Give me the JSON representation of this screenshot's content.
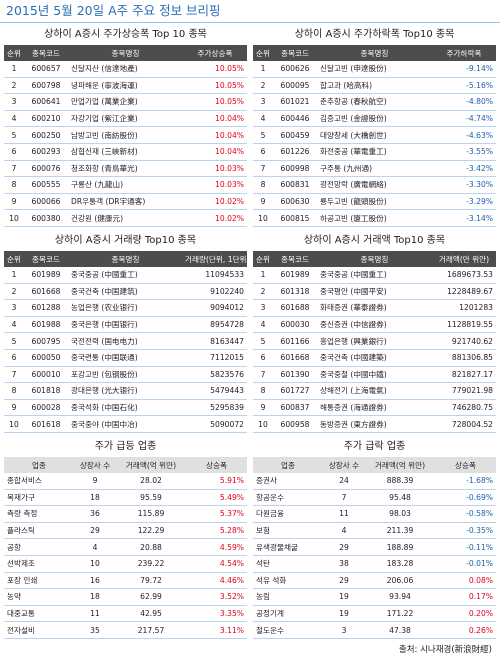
{
  "title": "2015년 5월 20일 A주 주요 정보 브리핑",
  "tables": [
    {
      "title": "상하이 A증시 주가상승폭 Top 10 종목",
      "headers": [
        "순위",
        "종목코드",
        "종목명칭",
        "주가상승폭"
      ],
      "value_colors": {
        "positive": "#e3001b",
        "negative": "#1f5fb0"
      },
      "rows": [
        [
          "1",
          "600657",
          "신달지산 (信達地產)",
          "10.05%"
        ],
        [
          "2",
          "600798",
          "녕파해운 (寧波海運)",
          "10.05%"
        ],
        [
          "3",
          "600641",
          "만업기업 (萬業企業)",
          "10.05%"
        ],
        [
          "4",
          "600210",
          "자강기업 (紫江企業)",
          "10.04%"
        ],
        [
          "5",
          "600250",
          "남방고빈 (南紡股份)",
          "10.04%"
        ],
        [
          "6",
          "600293",
          "삼협신재 (三峽新材)",
          "10.04%"
        ],
        [
          "7",
          "600076",
          "청조화항 (青鳥華光)",
          "10.03%"
        ],
        [
          "8",
          "600555",
          "구룡산 (九龍山)",
          "10.03%"
        ],
        [
          "9",
          "600066",
          "DR우통객 (DR宇通客)",
          "10.02%"
        ],
        [
          "10",
          "600380",
          "건강원 (健康元)",
          "10.02%"
        ]
      ]
    },
    {
      "title": "상하이 A증시 주가하락폭 Top10 종목",
      "headers": [
        "순위",
        "종목코드",
        "종목명칭",
        "주가하락폭"
      ],
      "value_colors": {
        "positive": "#e3001b",
        "negative": "#1f5fb0"
      },
      "rows": [
        [
          "1",
          "600626",
          "신달고빈 (申達股份)",
          "-9.14%"
        ],
        [
          "2",
          "600095",
          "합고과 (哈高科)",
          "-5.16%"
        ],
        [
          "3",
          "601021",
          "춘추항공 (春秋航空)",
          "-4.80%"
        ],
        [
          "4",
          "600446",
          "김증고빈 (金證股份)",
          "-4.74%"
        ],
        [
          "5",
          "600459",
          "대양창세 (大橋創世)",
          "-4.63%"
        ],
        [
          "6",
          "601226",
          "화전중공 (華電重工)",
          "-3.55%"
        ],
        [
          "7",
          "600998",
          "구주통 (九州通)",
          "-3.42%"
        ],
        [
          "8",
          "600831",
          "광전망락 (廣電網絡)",
          "-3.30%"
        ],
        [
          "9",
          "600630",
          "룡두고빈 (龍頭股份)",
          "-3.29%"
        ],
        [
          "10",
          "600815",
          "하공고빈 (廈工股份)",
          "-3.14%"
        ]
      ]
    },
    {
      "title": "상하이 A증시 거래량 Top10 종목",
      "headers": [
        "순위",
        "종목코드",
        "종목명칭",
        "거래량(단위, 1단위=100주)"
      ],
      "rows": [
        [
          "1",
          "601989",
          "중국중공 (中國重工)",
          "11094533"
        ],
        [
          "2",
          "601668",
          "중국건축 (中国建筑)",
          "9102240"
        ],
        [
          "3",
          "601288",
          "농업은행 (农业银行)",
          "9094012"
        ],
        [
          "4",
          "601988",
          "중국은행 (中国银行)",
          "8954728"
        ],
        [
          "5",
          "600795",
          "국전전력 (国电电力)",
          "8163447"
        ],
        [
          "6",
          "600050",
          "중국련통 (中国联通)",
          "7112015"
        ],
        [
          "7",
          "600010",
          "포강고빈 (包钢股份)",
          "5823576"
        ],
        [
          "8",
          "601818",
          "광대은행 (光大银行)",
          "5479443"
        ],
        [
          "9",
          "600028",
          "중국석화 (中国石化)",
          "5295839"
        ],
        [
          "10",
          "601618",
          "중국중야 (中国中冶)",
          "5090072"
        ]
      ]
    },
    {
      "title": "상하이 A증시 거래액 Top10 종목",
      "headers": [
        "순위",
        "종목코드",
        "종목명칭",
        "거래액(만 위안)"
      ],
      "rows": [
        [
          "1",
          "601989",
          "중국중공 (中國重工)",
          "1689673.53"
        ],
        [
          "2",
          "601318",
          "중국평안 (中國平安)",
          "1228489.67"
        ],
        [
          "3",
          "601688",
          "화태증권 (華泰證券)",
          "1201283"
        ],
        [
          "4",
          "600030",
          "중신증권 (中信證券)",
          "1128819.55"
        ],
        [
          "5",
          "601166",
          "흥업은행 (興業銀行)",
          "921740.62"
        ],
        [
          "6",
          "601668",
          "중국건축 (中國建築)",
          "881306.85"
        ],
        [
          "7",
          "601390",
          "중국중철 (中國中鐵)",
          "821827.17"
        ],
        [
          "8",
          "601727",
          "상해전기 (上海電氣)",
          "779021.98"
        ],
        [
          "9",
          "600837",
          "해통증권 (海通證券)",
          "746280.75"
        ],
        [
          "10",
          "600958",
          "동방증권 (東方證券)",
          "728004.52"
        ]
      ]
    },
    {
      "title": "주가 급등 업종",
      "headers": [
        "업종",
        "상장사 수",
        "거래액(억 위안)",
        "상승폭"
      ],
      "value_colors": {
        "positive": "#e3001b",
        "negative": "#1f5fb0"
      },
      "rows": [
        [
          "종합서비스",
          "9",
          "28.02",
          "5.91%"
        ],
        [
          "목재가구",
          "18",
          "95.59",
          "5.49%"
        ],
        [
          "측량 측정",
          "36",
          "115.89",
          "5.37%"
        ],
        [
          "플라스틱",
          "29",
          "122.29",
          "5.28%"
        ],
        [
          "공항",
          "4",
          "20.88",
          "4.59%"
        ],
        [
          "선박제조",
          "10",
          "239.22",
          "4.54%"
        ],
        [
          "포장 인쇄",
          "16",
          "79.72",
          "4.46%"
        ],
        [
          "농약",
          "18",
          "62.99",
          "3.52%"
        ],
        [
          "대중교통",
          "11",
          "42.95",
          "3.35%"
        ],
        [
          "전자설비",
          "35",
          "217.57",
          "3.11%"
        ]
      ]
    },
    {
      "title": "주가 급락 업종",
      "headers": [
        "업종",
        "상장사 수",
        "거래액(억 위안)",
        "상승폭"
      ],
      "value_colors": {
        "positive": "#e3001b",
        "negative": "#1f5fb0"
      },
      "rows": [
        [
          "증권사",
          "24",
          "888.39",
          "-1.68%"
        ],
        [
          "항공운수",
          "7",
          "95.48",
          "-0.69%"
        ],
        [
          "다원금융",
          "11",
          "98.03",
          "-0.58%"
        ],
        [
          "보험",
          "4",
          "211.39",
          "-0.35%"
        ],
        [
          "유색광물채굴",
          "29",
          "188.89",
          "-0.11%"
        ],
        [
          "석탄",
          "38",
          "183.28",
          "-0.01%"
        ],
        [
          "석유 석화",
          "29",
          "206.06",
          "0.08%"
        ],
        [
          "농림",
          "19",
          "93.94",
          "0.17%"
        ],
        [
          "공정기계",
          "19",
          "171.22",
          "0.20%"
        ],
        [
          "철도운수",
          "3",
          "47.38",
          "0.26%"
        ]
      ]
    }
  ],
  "source": "출처: 시나재경(新浪財經)"
}
